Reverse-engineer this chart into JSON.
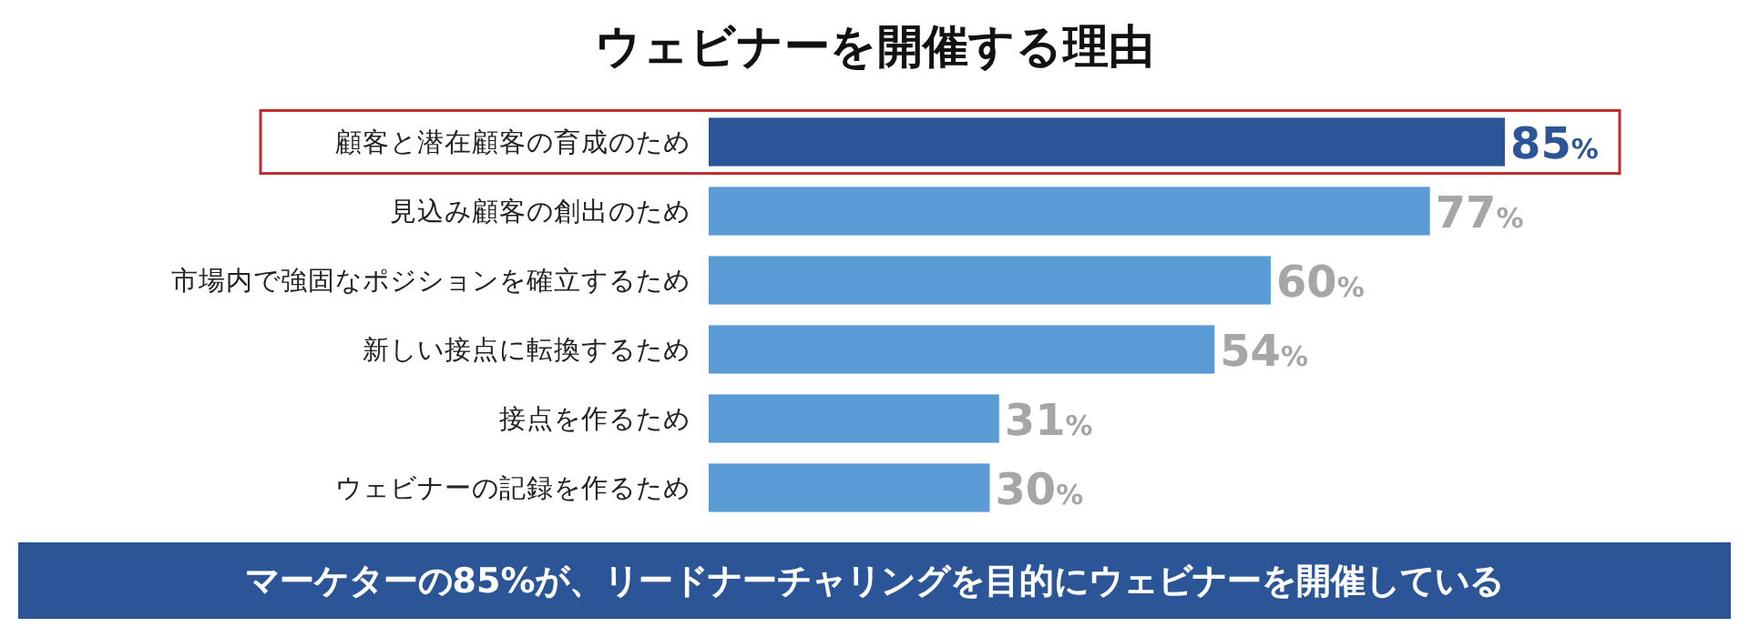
{
  "chart_data": {
    "type": "bar",
    "orientation": "horizontal",
    "title": "ウェビナーを開催する理由",
    "categories": [
      "顧客と潜在顧客の育成のため",
      "見込み顧客の創出のため",
      "市場内で強固なポジションを確立するため",
      "新しい接点に転換するため",
      "接点を作るため",
      "ウェビナーの記録を作るため"
    ],
    "values": [
      85,
      77,
      60,
      54,
      31,
      30
    ],
    "colors": [
      "#2b5597",
      "#5b9bd5",
      "#5b9bd5",
      "#5b9bd5",
      "#5b9bd5",
      "#5b9bd5"
    ],
    "value_labels": [
      "85%",
      "77%",
      "60%",
      "54%",
      "31%",
      "30%"
    ],
    "annotations": [
      "マーケターの85%が、リードナーチャリングを目的にウェビナーを開催している"
    ]
  }
}
